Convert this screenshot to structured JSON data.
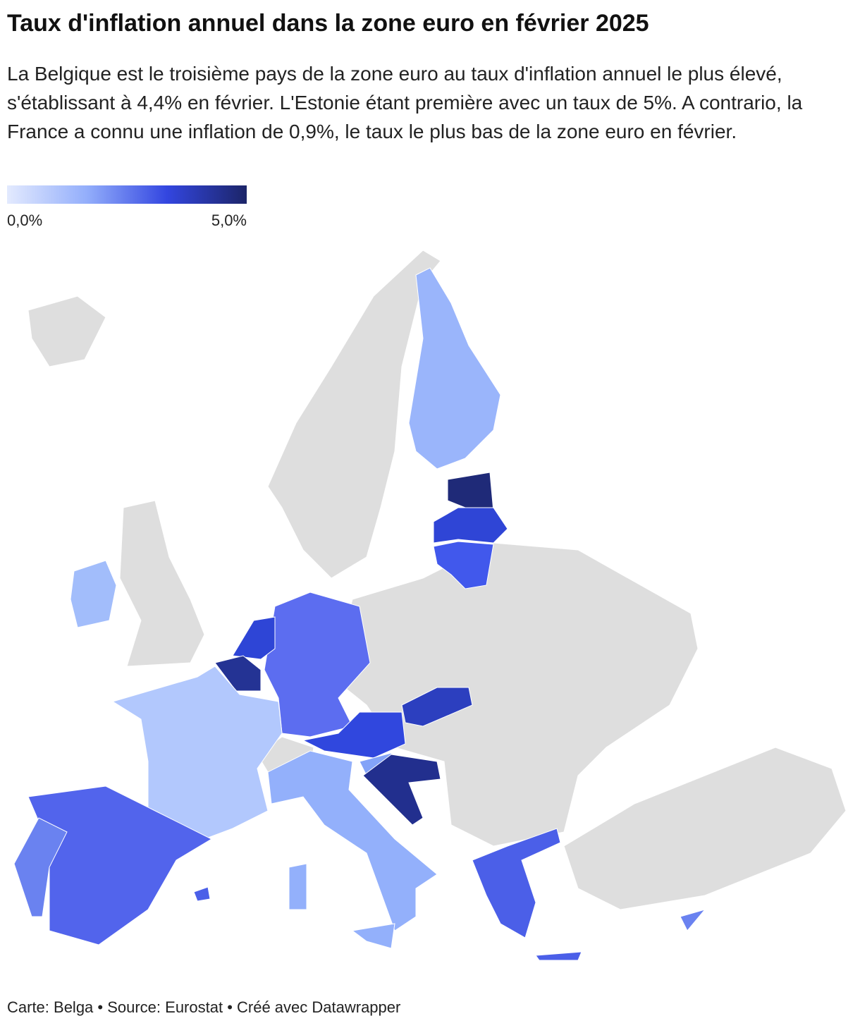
{
  "header": {
    "title": "Taux d'inflation annuel dans la zone euro en février 2025",
    "description": "La Belgique est le troisième pays de la zone euro au taux d'inflation annuel le plus élevé, s'établissant à 4,4% en février. L'Estonie étant première avec un taux de 5%. A contrario, la France a connu une inflation de 0,9%, le taux le plus bas de la zone euro en février."
  },
  "legend": {
    "colors": [
      "#e3eafe",
      "#93aefb",
      "#3346e0",
      "#1c2568"
    ],
    "ticks": [
      {
        "value": 0,
        "label": "0,0%"
      },
      {
        "value": 5,
        "label": "5,0%"
      }
    ]
  },
  "footer": "Carte: Belga • Source: Eurostat • Créé avec Datawrapper"
}
